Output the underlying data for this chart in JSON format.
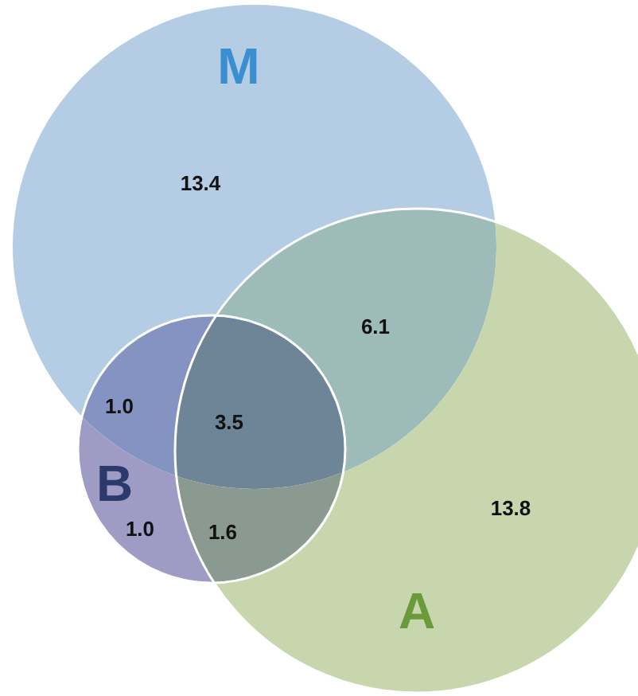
{
  "chart_data": {
    "type": "other",
    "categories": [
      null,
      null,
      null,
      null,
      null,
      null,
      null
    ],
    "colors": [
      "#b4cce4",
      "#9dbcb9",
      "#8593c2",
      "#6e8597",
      "#c8d6ae",
      "#9e9bc4",
      "#8a9a90"
    ],
    "annotations": [
      "M",
      "A",
      "B"
    ],
    "values": [
      13.4,
      6.1,
      1.0,
      3.5,
      13.8,
      1.0,
      1.6
    ],
    "value_labels": [
      "13.4",
      "6.1",
      "1.0",
      "3.5",
      "13.8",
      "1.0",
      "1.6"
    ]
  }
}
